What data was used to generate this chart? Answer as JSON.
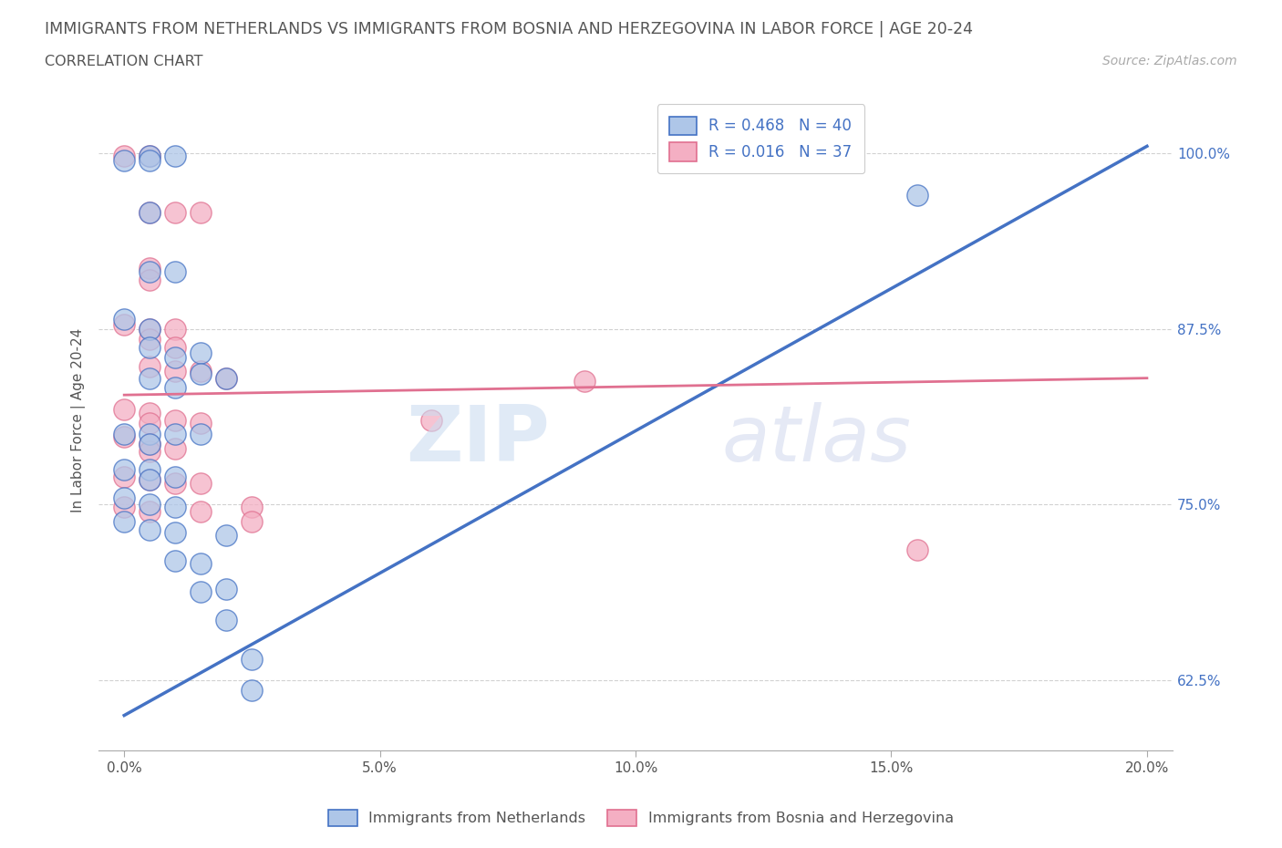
{
  "title": "IMMIGRANTS FROM NETHERLANDS VS IMMIGRANTS FROM BOSNIA AND HERZEGOVINA IN LABOR FORCE | AGE 20-24",
  "subtitle": "CORRELATION CHART",
  "source": "Source: ZipAtlas.com",
  "xlabel_pct": [
    "0.0%",
    "5.0%",
    "10.0%",
    "15.0%",
    "20.0%"
  ],
  "xlabel_vals": [
    0.0,
    0.05,
    0.1,
    0.15,
    0.2
  ],
  "ylabel_pct": [
    "62.5%",
    "75.0%",
    "87.5%",
    "100.0%"
  ],
  "ylabel_vals": [
    0.625,
    0.75,
    0.875,
    1.0
  ],
  "xlim": [
    -0.005,
    0.205
  ],
  "ylim": [
    0.575,
    1.045
  ],
  "netherlands_R": 0.468,
  "netherlands_N": 40,
  "bosnia_R": 0.016,
  "bosnia_N": 37,
  "netherlands_color": "#aec6e8",
  "netherlands_line_color": "#4472c4",
  "bosnia_color": "#f4afc3",
  "bosnia_line_color": "#e07090",
  "nl_line": [
    0.0,
    0.6,
    0.2,
    1.005
  ],
  "bh_line": [
    0.0,
    0.828,
    0.2,
    0.84
  ],
  "netherlands_scatter": [
    [
      0.0,
      0.995
    ],
    [
      0.005,
      0.998
    ],
    [
      0.005,
      0.995
    ],
    [
      0.01,
      0.998
    ],
    [
      0.005,
      0.958
    ],
    [
      0.005,
      0.916
    ],
    [
      0.01,
      0.916
    ],
    [
      0.0,
      0.882
    ],
    [
      0.005,
      0.875
    ],
    [
      0.005,
      0.862
    ],
    [
      0.01,
      0.855
    ],
    [
      0.015,
      0.858
    ],
    [
      0.005,
      0.84
    ],
    [
      0.01,
      0.833
    ],
    [
      0.015,
      0.843
    ],
    [
      0.02,
      0.84
    ],
    [
      0.0,
      0.8
    ],
    [
      0.005,
      0.8
    ],
    [
      0.005,
      0.793
    ],
    [
      0.01,
      0.8
    ],
    [
      0.015,
      0.8
    ],
    [
      0.0,
      0.775
    ],
    [
      0.005,
      0.775
    ],
    [
      0.005,
      0.768
    ],
    [
      0.01,
      0.77
    ],
    [
      0.0,
      0.755
    ],
    [
      0.005,
      0.75
    ],
    [
      0.01,
      0.748
    ],
    [
      0.0,
      0.738
    ],
    [
      0.005,
      0.732
    ],
    [
      0.01,
      0.73
    ],
    [
      0.02,
      0.728
    ],
    [
      0.01,
      0.71
    ],
    [
      0.015,
      0.708
    ],
    [
      0.015,
      0.688
    ],
    [
      0.02,
      0.69
    ],
    [
      0.02,
      0.668
    ],
    [
      0.025,
      0.64
    ],
    [
      0.025,
      0.618
    ],
    [
      0.155,
      0.97
    ]
  ],
  "bosnia_scatter": [
    [
      0.0,
      0.998
    ],
    [
      0.005,
      0.998
    ],
    [
      0.005,
      0.958
    ],
    [
      0.01,
      0.958
    ],
    [
      0.015,
      0.958
    ],
    [
      0.005,
      0.918
    ],
    [
      0.005,
      0.91
    ],
    [
      0.0,
      0.878
    ],
    [
      0.005,
      0.875
    ],
    [
      0.005,
      0.868
    ],
    [
      0.01,
      0.875
    ],
    [
      0.01,
      0.862
    ],
    [
      0.005,
      0.848
    ],
    [
      0.01,
      0.845
    ],
    [
      0.015,
      0.845
    ],
    [
      0.02,
      0.84
    ],
    [
      0.09,
      0.838
    ],
    [
      0.0,
      0.818
    ],
    [
      0.005,
      0.815
    ],
    [
      0.005,
      0.808
    ],
    [
      0.01,
      0.81
    ],
    [
      0.015,
      0.808
    ],
    [
      0.0,
      0.798
    ],
    [
      0.005,
      0.793
    ],
    [
      0.005,
      0.788
    ],
    [
      0.01,
      0.79
    ],
    [
      0.0,
      0.77
    ],
    [
      0.005,
      0.768
    ],
    [
      0.01,
      0.765
    ],
    [
      0.015,
      0.765
    ],
    [
      0.0,
      0.748
    ],
    [
      0.005,
      0.745
    ],
    [
      0.015,
      0.745
    ],
    [
      0.025,
      0.748
    ],
    [
      0.025,
      0.738
    ],
    [
      0.06,
      0.81
    ],
    [
      0.155,
      0.718
    ]
  ],
  "watermark_zip": "ZIP",
  "watermark_atlas": "atlas",
  "grid_color": "#cccccc",
  "bg_color": "#ffffff"
}
